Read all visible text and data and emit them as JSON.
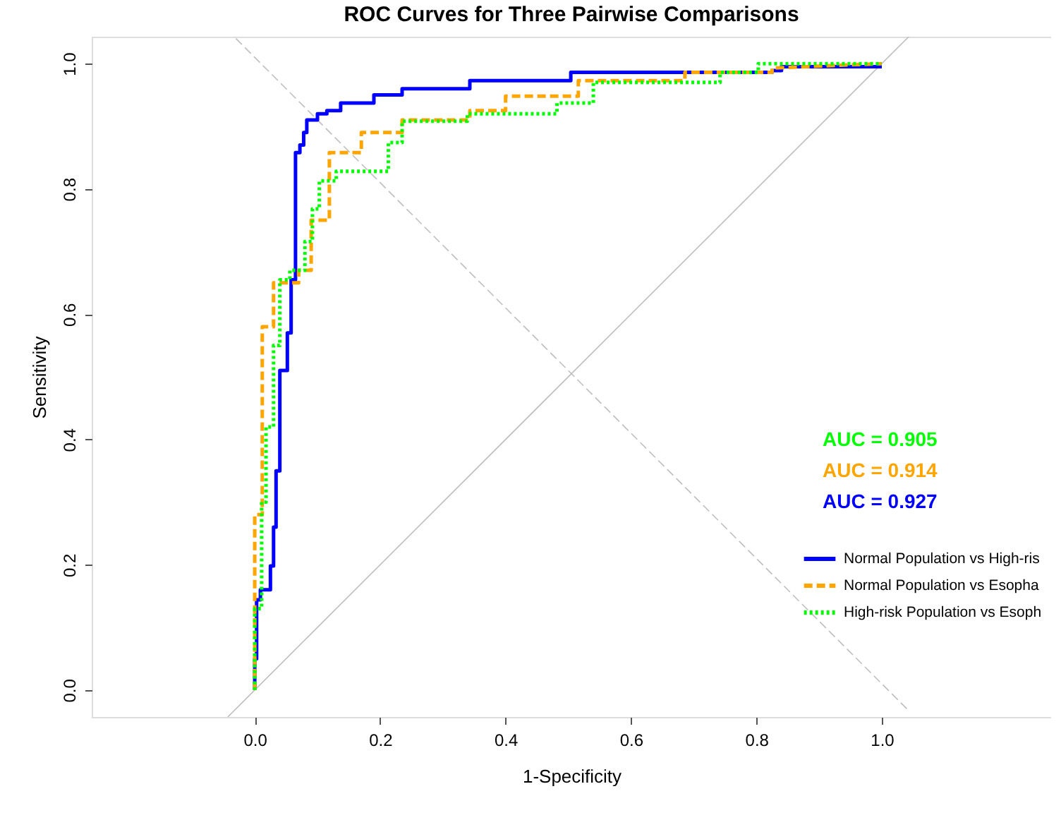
{
  "chart_data": {
    "type": "line",
    "title": "ROC Curves for Three Pairwise Comparisons",
    "xlabel": "1-Specificity",
    "ylabel": "Sensitivity",
    "xlim": [
      -0.26,
      1.27
    ],
    "ylim": [
      -0.043,
      1.043
    ],
    "xticks": [
      {
        "value": 0,
        "label": "0.0"
      },
      {
        "value": 0.2,
        "label": "0.2"
      },
      {
        "value": 0.4,
        "label": "0.4"
      },
      {
        "value": 0.6,
        "label": "0.6"
      },
      {
        "value": 0.8,
        "label": "0.8"
      },
      {
        "value": 1,
        "label": "1.0"
      }
    ],
    "yticks": [
      {
        "value": 0,
        "label": "0.0"
      },
      {
        "value": 0.2,
        "label": "0.2"
      },
      {
        "value": 0.4,
        "label": "0.4"
      },
      {
        "value": 0.6,
        "label": "0.6"
      },
      {
        "value": 0.8,
        "label": "0.8"
      },
      {
        "value": 1,
        "label": "1.0"
      }
    ],
    "grid": false,
    "legend": "bottom right",
    "marker": "none",
    "annotations": [
      "AUC = 0.905",
      "AUC = 0.914",
      "AUC = 0.927"
    ],
    "series": [
      {
        "name": "Normal Population vs High-ris",
        "color": "#0000ff",
        "line_style": "solid",
        "x": [
          0,
          0,
          0.003,
          0.003,
          0.009,
          0.009,
          0.025,
          0.025,
          0.03,
          0.03,
          0.034,
          0.034,
          0.04,
          0.04,
          0.052,
          0.052,
          0.058,
          0.058,
          0.065,
          0.065,
          0.072,
          0.072,
          0.078,
          0.078,
          0.083,
          0.083,
          0.1,
          0.1,
          0.115,
          0.115,
          0.137,
          0.137,
          0.19,
          0.19,
          0.235,
          0.235,
          0.343,
          0.343,
          0.504,
          0.504,
          0.825,
          0.825,
          0.84,
          0.84,
          1
        ],
        "values": [
          0,
          0.05,
          0.05,
          0.144,
          0.144,
          0.16,
          0.16,
          0.198,
          0.198,
          0.26,
          0.26,
          0.35,
          0.35,
          0.51,
          0.51,
          0.57,
          0.57,
          0.655,
          0.655,
          0.858,
          0.858,
          0.87,
          0.87,
          0.89,
          0.89,
          0.91,
          0.91,
          0.92,
          0.92,
          0.925,
          0.925,
          0.937,
          0.937,
          0.95,
          0.95,
          0.96,
          0.96,
          0.973,
          0.973,
          0.986,
          0.986,
          0.989,
          0.989,
          0.995,
          0.995
        ]
      },
      {
        "name": "Normal Population vs Esopha",
        "color": "#ffa500",
        "line_style": "dashed",
        "x": [
          0,
          0,
          0.012,
          0.012,
          0.03,
          0.03,
          0.07,
          0.07,
          0.09,
          0.09,
          0.119,
          0.119,
          0.17,
          0.17,
          0.235,
          0.235,
          0.343,
          0.343,
          0.4,
          0.4,
          0.516,
          0.516,
          0.686,
          0.686,
          0.825,
          0.825,
          1
        ],
        "values": [
          0,
          0.28,
          0.28,
          0.58,
          0.58,
          0.65,
          0.65,
          0.67,
          0.67,
          0.75,
          0.75,
          0.858,
          0.858,
          0.89,
          0.89,
          0.91,
          0.91,
          0.925,
          0.925,
          0.948,
          0.948,
          0.973,
          0.973,
          0.986,
          0.986,
          0.993,
          1
        ]
      },
      {
        "name": "High-risk Population vs Esoph",
        "color": "#00ff00",
        "line_style": "dotted",
        "x": [
          0,
          0,
          0.011,
          0.011,
          0.018,
          0.018,
          0.03,
          0.03,
          0.04,
          0.04,
          0.056,
          0.056,
          0.08,
          0.08,
          0.092,
          0.092,
          0.103,
          0.103,
          0.13,
          0.13,
          0.213,
          0.213,
          0.235,
          0.235,
          0.339,
          0.339,
          0.482,
          0.482,
          0.54,
          0.54,
          0.742,
          0.742,
          0.803,
          0.803,
          1
        ],
        "values": [
          0,
          0.13,
          0.13,
          0.3,
          0.3,
          0.42,
          0.42,
          0.55,
          0.55,
          0.655,
          0.655,
          0.67,
          0.67,
          0.716,
          0.716,
          0.768,
          0.768,
          0.813,
          0.813,
          0.828,
          0.828,
          0.874,
          0.874,
          0.908,
          0.908,
          0.92,
          0.92,
          0.937,
          0.937,
          0.97,
          0.97,
          0.986,
          0.986,
          1,
          1
        ]
      },
      {
        "color": "#bebebe",
        "line_style": "solid",
        "x": [
          -0.043,
          1.043
        ],
        "values": [
          -0.043,
          1.043
        ]
      },
      {
        "color": "#bebebe",
        "line_style": "dashed",
        "x": [
          -0.03,
          1.04
        ],
        "values": [
          1.04,
          -0.03
        ]
      }
    ]
  }
}
